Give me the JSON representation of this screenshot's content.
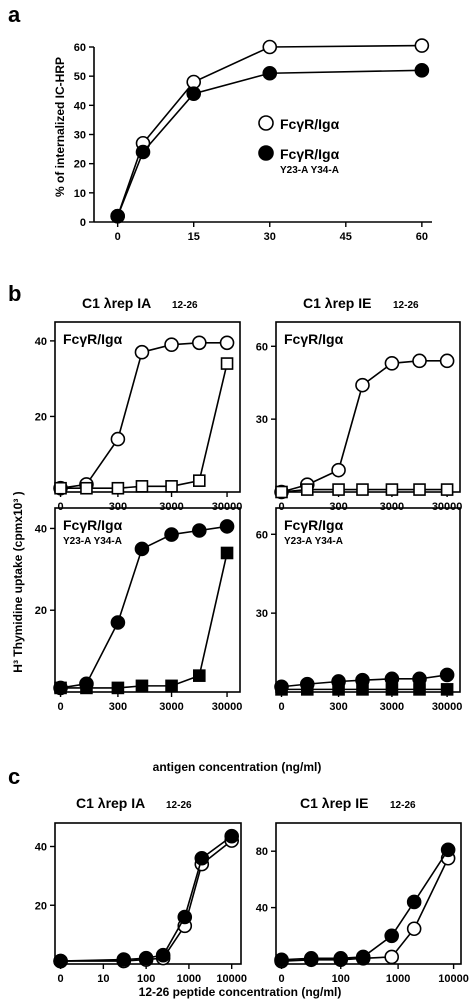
{
  "figure": {
    "panels": [
      {
        "letter": "a"
      },
      {
        "letter": "b"
      },
      {
        "letter": "c"
      }
    ]
  },
  "colors": {
    "open_marker": "#ffffff",
    "filled_marker": "#000000",
    "line": "#000000"
  },
  "chart_data": [
    {
      "id": "a",
      "type": "line",
      "ylabel": "% of internalized IC-HRP",
      "xlabel": "",
      "xlim": [
        0,
        60
      ],
      "ylim": [
        0,
        60
      ],
      "xticks": [
        0,
        15,
        30,
        45,
        60
      ],
      "yticks": [
        0,
        10,
        20,
        30,
        40,
        50,
        60
      ],
      "legend": {
        "position": "right",
        "entries": [
          {
            "marker": "open-circle",
            "main": "FcγR/Igα",
            "sub": ""
          },
          {
            "marker": "filled-circle",
            "main": "FcγR/Igα",
            "sub": "Y23-A Y34-A"
          }
        ]
      },
      "series": [
        {
          "marker": "open-circle",
          "x": [
            0,
            5,
            15,
            30,
            60
          ],
          "y": [
            2,
            27,
            48,
            60,
            60.5
          ]
        },
        {
          "marker": "filled-circle",
          "x": [
            0,
            5,
            15,
            30,
            60
          ],
          "y": [
            2,
            24,
            44,
            51,
            52
          ]
        }
      ]
    },
    {
      "id": "b1",
      "type": "line",
      "title_main": "C1 λrep IA",
      "title_sub": "12-26",
      "inset_main": "FcγR/Igα",
      "inset_sub": "",
      "xscale": "log",
      "xticks": [
        "0",
        "300",
        "3000",
        "30000"
      ],
      "ylim": [
        0,
        45
      ],
      "yticks": [
        20,
        40
      ],
      "series": [
        {
          "marker": "open-circle",
          "x": [
            0,
            100,
            300,
            1000,
            3000,
            10000,
            30000
          ],
          "y": [
            1,
            2,
            14,
            37,
            39,
            39.5,
            39.5
          ]
        },
        {
          "marker": "open-square",
          "x": [
            0,
            100,
            300,
            1000,
            3000,
            10000,
            30000
          ],
          "y": [
            1,
            1,
            1,
            1.5,
            1.5,
            3,
            34
          ]
        }
      ]
    },
    {
      "id": "b2",
      "type": "line",
      "title_main": "C1 λrep IE",
      "title_sub": "12-26",
      "inset_main": "FcγR/Igα",
      "inset_sub": "",
      "xscale": "log",
      "xticks": [
        "0",
        "300",
        "3000",
        "30000"
      ],
      "ylim": [
        0,
        70
      ],
      "yticks": [
        30,
        60
      ],
      "series": [
        {
          "marker": "open-circle",
          "x": [
            0,
            100,
            300,
            1000,
            3000,
            10000,
            30000
          ],
          "y": [
            0,
            3,
            9,
            44,
            53,
            54,
            54
          ]
        },
        {
          "marker": "open-square",
          "x": [
            0,
            100,
            300,
            1000,
            3000,
            10000,
            30000
          ],
          "y": [
            0,
            1,
            1,
            1,
            1,
            1,
            1
          ]
        }
      ]
    },
    {
      "id": "b3",
      "type": "line",
      "inset_main": "FcγR/Igα",
      "inset_sub": "Y23-A Y34-A",
      "xscale": "log",
      "xticks": [
        "0",
        "300",
        "3000",
        "30000"
      ],
      "ylim": [
        0,
        45
      ],
      "yticks": [
        20,
        40
      ],
      "series": [
        {
          "marker": "filled-circle",
          "x": [
            0,
            100,
            300,
            1000,
            3000,
            10000,
            30000
          ],
          "y": [
            1,
            2,
            17,
            35,
            38.5,
            39.5,
            40.5
          ]
        },
        {
          "marker": "filled-square",
          "x": [
            0,
            100,
            300,
            1000,
            3000,
            10000,
            30000
          ],
          "y": [
            1,
            1,
            1,
            1.5,
            1.5,
            4,
            34
          ]
        }
      ]
    },
    {
      "id": "b4",
      "type": "line",
      "inset_main": "FcγR/Igα",
      "inset_sub": "Y23-A Y34-A",
      "xscale": "log",
      "xticks": [
        "0",
        "300",
        "3000",
        "30000"
      ],
      "ylim": [
        0,
        70
      ],
      "yticks": [
        30,
        60
      ],
      "series": [
        {
          "marker": "filled-circle",
          "x": [
            0,
            100,
            300,
            1000,
            3000,
            10000,
            30000
          ],
          "y": [
            2,
            3,
            4,
            4.5,
            5,
            5,
            6.5
          ]
        },
        {
          "marker": "filled-square",
          "x": [
            0,
            100,
            300,
            1000,
            3000,
            10000,
            30000
          ],
          "y": [
            1,
            1,
            1,
            1,
            1,
            1,
            1
          ]
        }
      ]
    },
    {
      "id": "b-shared",
      "ylabel": "H³ Thymidine uptake (cpmx10³ )",
      "xlabel": "antigen concentration (ng/ml)"
    },
    {
      "id": "c1",
      "type": "line",
      "title_main": "C1 λrep IA",
      "title_sub": "12-26",
      "xscale": "log",
      "xticks": [
        "0",
        "10",
        "100",
        "1000",
        "10000"
      ],
      "ylim": [
        0,
        48
      ],
      "yticks": [
        20,
        40
      ],
      "series": [
        {
          "marker": "open-circle",
          "x": [
            0,
            30,
            100,
            250,
            800,
            2000,
            10000
          ],
          "y": [
            1,
            1,
            1.5,
            2,
            13,
            34,
            42
          ]
        },
        {
          "marker": "filled-circle",
          "x": [
            0,
            30,
            100,
            250,
            800,
            2000,
            10000
          ],
          "y": [
            1,
            1.5,
            2,
            3,
            16,
            36,
            43.5
          ]
        }
      ]
    },
    {
      "id": "c2",
      "type": "line",
      "title_main": "C1 λrep IE",
      "title_sub": "12-26",
      "xscale": "log",
      "xticks": [
        "0",
        "100",
        "1000",
        "10000"
      ],
      "ylim": [
        0,
        100
      ],
      "yticks": [
        40,
        80
      ],
      "series": [
        {
          "marker": "open-circle",
          "x": [
            0,
            30,
            100,
            250,
            800,
            2000,
            8000
          ],
          "y": [
            2,
            3,
            3,
            4,
            5,
            25,
            75
          ]
        },
        {
          "marker": "filled-circle",
          "x": [
            0,
            30,
            100,
            250,
            800,
            2000,
            8000
          ],
          "y": [
            3,
            4,
            4,
            5,
            20,
            44,
            81
          ]
        }
      ]
    },
    {
      "id": "c-shared",
      "xlabel": "12-26 peptide concentration (ng/ml)"
    }
  ]
}
